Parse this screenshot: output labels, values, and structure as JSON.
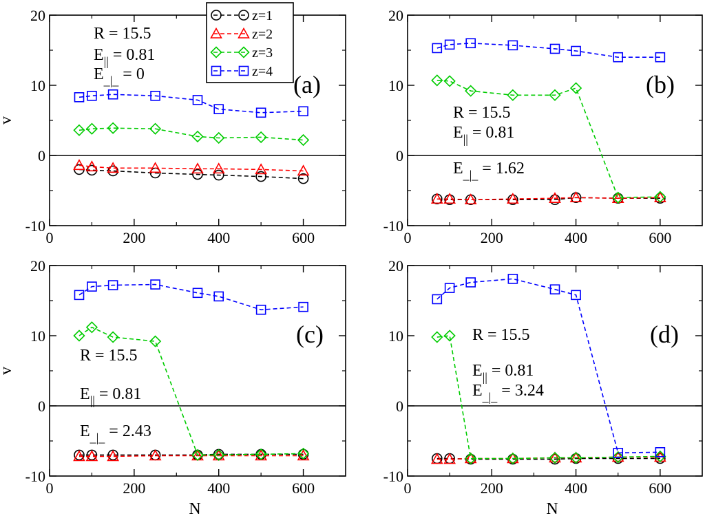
{
  "chart_data": [
    {
      "type": "line",
      "panel": "(a)",
      "xlabel": "",
      "ylabel": "v",
      "xlim": [
        0,
        700
      ],
      "ylim": [
        -10,
        20
      ],
      "xticks": [
        0,
        200,
        400,
        600
      ],
      "yticks": [
        -10,
        0,
        10,
        20
      ],
      "annotations": [
        "R = 15.5",
        "E|| = 0.81",
        "E_|_ = 0"
      ],
      "series": [
        {
          "name": "z=1",
          "color": "#000000",
          "marker": "circle",
          "x": [
            70,
            100,
            150,
            250,
            350,
            400,
            500,
            600
          ],
          "y": [
            -2.0,
            -2.1,
            -2.2,
            -2.5,
            -2.7,
            -2.8,
            -3.0,
            -3.3
          ]
        },
        {
          "name": "z=2",
          "color": "#ff0000",
          "marker": "triangle",
          "x": [
            70,
            100,
            150,
            250,
            350,
            400,
            500,
            600
          ],
          "y": [
            -1.4,
            -1.6,
            -1.8,
            -1.8,
            -1.9,
            -1.9,
            -2.0,
            -2.2
          ]
        },
        {
          "name": "z=3",
          "color": "#00cc00",
          "marker": "diamond",
          "x": [
            70,
            100,
            150,
            250,
            350,
            400,
            500,
            600
          ],
          "y": [
            3.6,
            3.8,
            3.9,
            3.8,
            2.7,
            2.5,
            2.6,
            2.2
          ]
        },
        {
          "name": "z=4",
          "color": "#0000ff",
          "marker": "square",
          "x": [
            70,
            100,
            150,
            250,
            350,
            400,
            500,
            600
          ],
          "y": [
            8.3,
            8.5,
            8.7,
            8.5,
            7.9,
            6.6,
            6.1,
            6.3
          ]
        }
      ]
    },
    {
      "type": "line",
      "panel": "(b)",
      "xlabel": "",
      "ylabel": "",
      "xlim": [
        0,
        700
      ],
      "ylim": [
        -10,
        20
      ],
      "xticks": [
        0,
        200,
        400,
        600
      ],
      "yticks": [
        -10,
        0,
        10,
        20
      ],
      "annotations": [
        "R = 15.5",
        "E|| = 0.81",
        "E_|_ = 1.62"
      ],
      "series": [
        {
          "name": "z=1",
          "color": "#000000",
          "marker": "circle",
          "x": [
            70,
            100,
            150,
            250,
            350,
            400,
            500,
            600
          ],
          "y": [
            -6.2,
            -6.3,
            -6.3,
            -6.3,
            -6.3,
            -6.0,
            -6.1,
            -6.1
          ]
        },
        {
          "name": "z=2",
          "color": "#ff0000",
          "marker": "triangle",
          "x": [
            70,
            100,
            150,
            250,
            350,
            400,
            500,
            600
          ],
          "y": [
            -6.2,
            -6.2,
            -6.3,
            -6.2,
            -6.1,
            -6.0,
            -6.1,
            -6.0
          ]
        },
        {
          "name": "z=3",
          "color": "#00cc00",
          "marker": "diamond",
          "x": [
            70,
            100,
            150,
            250,
            350,
            400,
            500,
            600
          ],
          "y": [
            10.7,
            10.6,
            9.2,
            8.6,
            8.6,
            9.6,
            -6.0,
            -5.9
          ]
        },
        {
          "name": "z=4",
          "color": "#0000ff",
          "marker": "square",
          "x": [
            70,
            100,
            150,
            250,
            350,
            400,
            500,
            600
          ],
          "y": [
            15.3,
            15.8,
            16.0,
            15.7,
            15.2,
            14.9,
            14.0,
            14.0
          ]
        }
      ]
    },
    {
      "type": "line",
      "panel": "(c)",
      "xlabel": "N",
      "ylabel": "v",
      "xlim": [
        0,
        700
      ],
      "ylim": [
        -10,
        20
      ],
      "xticks": [
        0,
        200,
        400,
        600
      ],
      "yticks": [
        -10,
        0,
        10,
        20
      ],
      "annotations": [
        "R = 15.5",
        "E|| = 0.81",
        "E_|_ = 2.43"
      ],
      "series": [
        {
          "name": "z=1",
          "color": "#000000",
          "marker": "circle",
          "x": [
            70,
            100,
            150,
            250,
            350,
            400,
            500,
            600
          ],
          "y": [
            -7.0,
            -7.0,
            -7.0,
            -7.0,
            -7.0,
            -6.9,
            -6.9,
            -6.9
          ]
        },
        {
          "name": "z=2",
          "color": "#ff0000",
          "marker": "triangle",
          "x": [
            70,
            100,
            150,
            250,
            350,
            400,
            500,
            600
          ],
          "y": [
            -7.2,
            -7.2,
            -7.2,
            -7.1,
            -7.1,
            -7.1,
            -7.1,
            -7.1
          ]
        },
        {
          "name": "z=3",
          "color": "#00cc00",
          "marker": "diamond",
          "x": [
            70,
            100,
            150,
            250,
            350,
            400,
            500,
            600
          ],
          "y": [
            10.0,
            11.2,
            9.8,
            9.2,
            -7.0,
            -7.0,
            -6.9,
            -6.8
          ]
        },
        {
          "name": "z=4",
          "color": "#0000ff",
          "marker": "square",
          "x": [
            70,
            100,
            150,
            250,
            350,
            400,
            500,
            600
          ],
          "y": [
            15.8,
            17.0,
            17.2,
            17.3,
            16.1,
            15.6,
            13.7,
            14.1
          ]
        }
      ]
    },
    {
      "type": "line",
      "panel": "(d)",
      "xlabel": "N",
      "ylabel": "",
      "xlim": [
        0,
        700
      ],
      "ylim": [
        -10,
        20
      ],
      "xticks": [
        0,
        200,
        400,
        600
      ],
      "yticks": [
        -10,
        0,
        10,
        20
      ],
      "annotations": [
        "R = 15.5",
        "E|| = 0.81",
        "E_|_ = 3.24"
      ],
      "series": [
        {
          "name": "z=1",
          "color": "#000000",
          "marker": "circle",
          "x": [
            70,
            100,
            150,
            250,
            350,
            400,
            500,
            600
          ],
          "y": [
            -7.5,
            -7.5,
            -7.6,
            -7.6,
            -7.6,
            -7.5,
            -7.5,
            -7.5
          ]
        },
        {
          "name": "z=2",
          "color": "#ff0000",
          "marker": "triangle",
          "x": [
            70,
            100,
            150,
            250,
            350,
            400,
            500,
            600
          ],
          "y": [
            -7.6,
            -7.6,
            -7.5,
            -7.5,
            -7.4,
            -7.4,
            -7.3,
            -7.3
          ]
        },
        {
          "name": "z=3",
          "color": "#00cc00",
          "marker": "diamond",
          "x": [
            70,
            100,
            150,
            250,
            350,
            400,
            500,
            600
          ],
          "y": [
            9.8,
            10.0,
            -7.5,
            -7.5,
            -7.4,
            -7.4,
            -7.3,
            -7.2
          ]
        },
        {
          "name": "z=4",
          "color": "#0000ff",
          "marker": "square",
          "x": [
            70,
            100,
            150,
            250,
            350,
            400,
            500,
            600
          ],
          "y": [
            15.2,
            16.8,
            17.6,
            18.1,
            16.6,
            15.8,
            -6.7,
            -6.6
          ]
        }
      ]
    }
  ],
  "legend": {
    "placement": "top-center",
    "entries": [
      {
        "label": "z=1",
        "color": "#000000",
        "marker": "circle"
      },
      {
        "label": "z=2",
        "color": "#ff0000",
        "marker": "triangle"
      },
      {
        "label": "z=3",
        "color": "#00cc00",
        "marker": "diamond"
      },
      {
        "label": "z=4",
        "color": "#0000ff",
        "marker": "square"
      }
    ]
  }
}
